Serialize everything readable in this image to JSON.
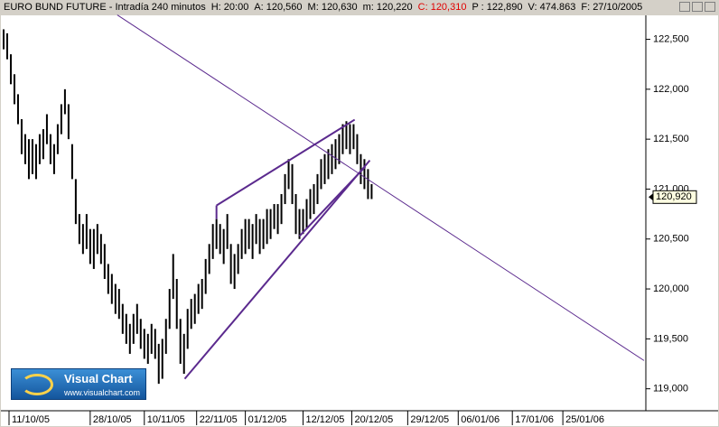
{
  "header": {
    "title": "EURO BUND FUTURE - Intradía 240 minutos",
    "fields": [
      "H: 20:00",
      "A: 120,560",
      "M: 120,630",
      "m: 120,220",
      "C: 120,310",
      "P : 122,890",
      "V: 474.863",
      "F: 27/10/2005"
    ]
  },
  "logo": {
    "name": "Visual Chart",
    "url": "www.visualchart.com"
  },
  "chart_data": {
    "type": "hilo",
    "color": "#000000",
    "line_color": "#5b2a8e",
    "high": [
      122600,
      122560,
      122350,
      122150,
      121950,
      121700,
      121550,
      121500,
      121500,
      121450,
      121550,
      121600,
      121750,
      121550,
      121450,
      121650,
      121850,
      122000,
      121850,
      121450,
      121100,
      120750,
      120650,
      120750,
      120600,
      120600,
      120650,
      120550,
      120450,
      120250,
      120150,
      120050,
      120000,
      119850,
      119750,
      119650,
      119750,
      119850,
      119700,
      119600,
      119550,
      119650,
      119600,
      119450,
      119500,
      119700,
      120000,
      120350,
      120100,
      119700,
      119550,
      119800,
      119900,
      119950,
      120050,
      120100,
      120300,
      120450,
      120650,
      120700,
      120650,
      120600,
      120750,
      120450,
      120350,
      120450,
      120600,
      120700,
      120700,
      120650,
      120750,
      120700,
      120700,
      120800,
      120800,
      120850,
      120850,
      120950,
      121150,
      121300,
      121250,
      120950,
      120800,
      120800,
      120900,
      121000,
      121050,
      121150,
      121300,
      121350,
      121400,
      121450,
      121500,
      121550,
      121650,
      121680,
      121650,
      121650,
      121550,
      121350,
      121300,
      121200,
      121050
    ],
    "low": [
      122400,
      122300,
      122050,
      121850,
      121650,
      121350,
      121250,
      121100,
      121150,
      121100,
      121250,
      121300,
      121450,
      121250,
      121150,
      121350,
      121550,
      121750,
      121500,
      121100,
      120650,
      120450,
      120350,
      120400,
      120250,
      120200,
      120350,
      120250,
      120100,
      119950,
      119850,
      119750,
      119700,
      119550,
      119450,
      119350,
      119450,
      119550,
      119400,
      119300,
      119250,
      119350,
      119300,
      119050,
      119100,
      119350,
      119600,
      119900,
      119600,
      119250,
      119150,
      119400,
      119600,
      119650,
      119750,
      119800,
      119950,
      120150,
      120300,
      120400,
      120350,
      120250,
      120400,
      120050,
      120000,
      120150,
      120300,
      120350,
      120400,
      120300,
      120450,
      120350,
      120400,
      120450,
      120500,
      120600,
      120550,
      120650,
      120850,
      121000,
      120850,
      120550,
      120500,
      120550,
      120600,
      120700,
      120750,
      120850,
      121000,
      121050,
      121100,
      121150,
      121200,
      121250,
      121350,
      121400,
      121350,
      121400,
      121250,
      121050,
      121000,
      120900,
      120900
    ],
    "xlim": [
      -1,
      178
    ],
    "xticks": [
      {
        "value": 1.5,
        "label": "11/10/05"
      },
      {
        "value": 24,
        "label": "28/10/05"
      },
      {
        "value": 39,
        "label": "10/11/05"
      },
      {
        "value": 53.5,
        "label": "22/11/05"
      },
      {
        "value": 67,
        "label": "01/12/05"
      },
      {
        "value": 83,
        "label": "12/12/05"
      },
      {
        "value": 96.5,
        "label": "20/12/05"
      },
      {
        "value": 112,
        "label": "29/12/05"
      },
      {
        "value": 126,
        "label": "06/01/06"
      },
      {
        "value": 141,
        "label": "17/01/06"
      },
      {
        "value": 155,
        "label": "25/01/06"
      }
    ],
    "ylim": [
      118780,
      122740
    ],
    "yticks": [
      {
        "value": 119000,
        "label": "119,000"
      },
      {
        "value": 119500,
        "label": "119,500"
      },
      {
        "value": 120000,
        "label": "120,000"
      },
      {
        "value": 120500,
        "label": "120,500"
      },
      {
        "value": 121000,
        "label": "121,000"
      },
      {
        "value": 121500,
        "label": "121,500"
      },
      {
        "value": 122000,
        "label": "122,000"
      },
      {
        "value": 122500,
        "label": "122,500"
      }
    ],
    "last_price": {
      "value": 120920,
      "label": "120,920"
    },
    "trendlines": [
      {
        "x": [
          31.5,
          177.5
        ],
        "y": [
          122744,
          119283
        ]
      },
      {
        "x": [
          59,
          97.3
        ],
        "y": [
          120836,
          121695
        ]
      },
      {
        "x": [
          59,
          59
        ],
        "y": [
          120836,
          120700
        ]
      },
      {
        "x": [
          50.2,
          101.5
        ],
        "y": [
          119100,
          121288
        ]
      },
      {
        "x": [
          82,
          100.25
        ],
        "y": [
          120529,
          121225
        ]
      }
    ]
  }
}
